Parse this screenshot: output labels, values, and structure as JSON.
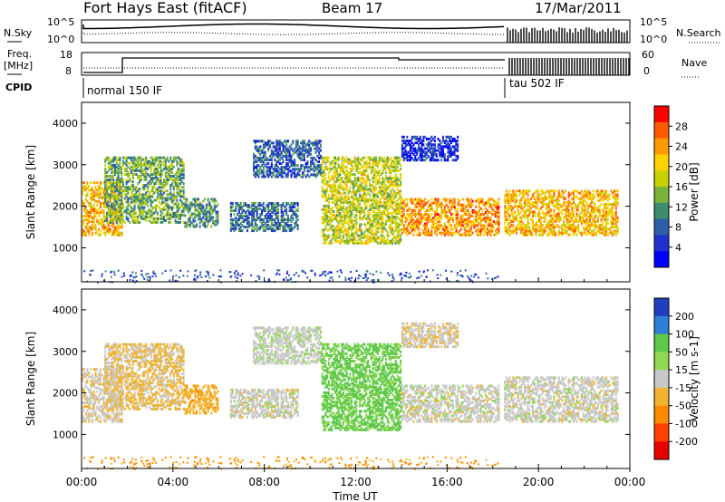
{
  "header": {
    "station": "Fort Hays East (fitACF)",
    "beam": "Beam 17",
    "date": "17/Mar/2011"
  },
  "side_labels": {
    "nsky": "N.Sky",
    "freq_line1": "Freq.",
    "freq_line2": "[MHz]",
    "cpid": "CPID",
    "nsearch": "N.Search",
    "nave": "Nave"
  },
  "axes_small": {
    "noise_ticks": [
      "10^5",
      "10^0"
    ],
    "freq_ticks": [
      "18",
      "8"
    ],
    "nave_ticks": [
      "60",
      "0"
    ],
    "nsearch_ticks": [
      "10^5",
      "10^0"
    ]
  },
  "cpid_labels": [
    "normal 150 IF",
    "tau 502 IF"
  ],
  "time_axis": {
    "ticks": [
      "00:00",
      "04:00",
      "08:00",
      "12:00",
      "16:00",
      "20:00",
      "00:00"
    ],
    "label": "Time UT"
  },
  "range_axis": {
    "label": "Slant Range [km]",
    "ticks": [
      "4000",
      "3000",
      "2000",
      "1000"
    ]
  },
  "power_colorbar": {
    "label": "Power [dB]",
    "ticks": [
      "28",
      "24",
      "20",
      "16",
      "12",
      "8",
      "4"
    ],
    "colors": [
      "#ff0000",
      "#ff5a00",
      "#ff9a00",
      "#ffd200",
      "#c8d200",
      "#7ab43a",
      "#3c8c6e",
      "#2d5fa8",
      "#1f2fd0",
      "#0000ff"
    ]
  },
  "velocity_colorbar": {
    "label": "Velocity [m s-1]",
    "ticks": [
      "200",
      "100",
      "50",
      "15",
      "-15",
      "-50",
      "-100",
      "-200"
    ],
    "colors": [
      "#1f3fbf",
      "#2e7fd6",
      "#5fc84a",
      "#8fd84f",
      "#c8c8c8",
      "#f0b431",
      "#ff8a00",
      "#ff4000",
      "#e60000"
    ]
  },
  "chart_data": {
    "type": "heatmap",
    "title": "Fort Hays East (fitACF)",
    "xlabel": "Time UT",
    "ylabel": "Slant Range [km]",
    "xlim": [
      "00:00",
      "24:00"
    ],
    "ylim": [
      180,
      4500
    ],
    "cpid_segments": [
      {
        "start": "00:00",
        "end": "18:30",
        "label": "normal 150 IF"
      },
      {
        "start": "18:30",
        "end": "24:00",
        "label": "tau 502 IF"
      }
    ],
    "echo_regions": [
      {
        "t0": 0.0,
        "t1": 1.8,
        "r0": 1300,
        "r1": 2600,
        "power": 22,
        "velocity": -10
      },
      {
        "t0": 1.0,
        "t1": 4.5,
        "r0": 1600,
        "r1": 3200,
        "power": 14,
        "velocity": -20
      },
      {
        "t0": 4.5,
        "t1": 6.0,
        "r0": 1500,
        "r1": 2200,
        "power": 12,
        "velocity": -40
      },
      {
        "t0": 6.5,
        "t1": 9.5,
        "r0": 1400,
        "r1": 2100,
        "power": 10,
        "velocity": 0
      },
      {
        "t0": 7.5,
        "t1": 10.5,
        "r0": 2700,
        "r1": 3600,
        "power": 9,
        "velocity": 5
      },
      {
        "t0": 10.5,
        "t1": 14.0,
        "r0": 1100,
        "r1": 3200,
        "power": 18,
        "velocity": 60
      },
      {
        "t0": 14.0,
        "t1": 18.3,
        "r0": 1300,
        "r1": 2200,
        "power": 24,
        "velocity": 0
      },
      {
        "t0": 14.0,
        "t1": 16.5,
        "r0": 3100,
        "r1": 3700,
        "power": 6,
        "velocity": -10
      },
      {
        "t0": 18.5,
        "t1": 23.5,
        "r0": 1300,
        "r1": 2400,
        "power": 22,
        "velocity": 0
      }
    ]
  }
}
